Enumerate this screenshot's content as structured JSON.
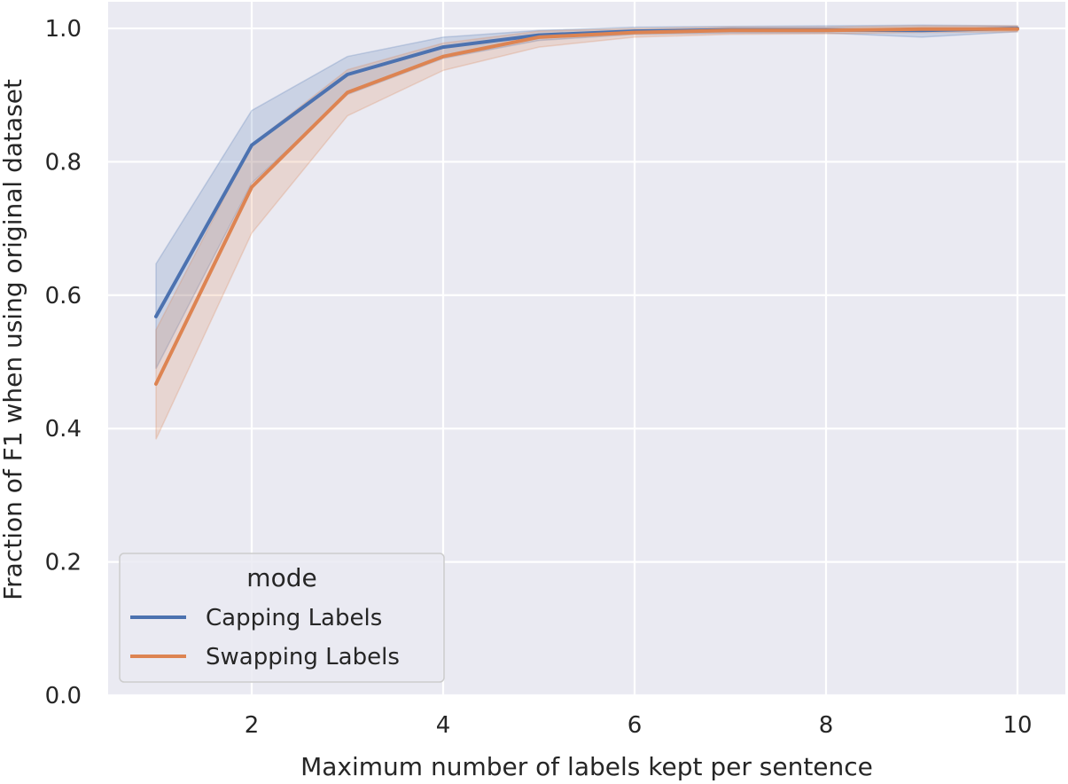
{
  "chart_data": {
    "type": "line",
    "title": "",
    "xlabel": "Maximum number of labels kept per sentence",
    "ylabel": "Fraction of F1 when using original dataset",
    "xlim": [
      0.5,
      10.5
    ],
    "ylim": [
      0.0,
      1.04
    ],
    "xticks": [
      2,
      4,
      6,
      8,
      10
    ],
    "yticks": [
      0.0,
      0.2,
      0.4,
      0.6,
      0.8,
      1.0
    ],
    "xtick_labels": [
      "2",
      "4",
      "6",
      "8",
      "10"
    ],
    "ytick_labels": [
      "0.0",
      "0.2",
      "0.4",
      "0.6",
      "0.8",
      "1.0"
    ],
    "grid": true,
    "background": "#eaeaf2",
    "legend": {
      "title": "mode",
      "placement": "lower-left"
    },
    "x": [
      1,
      2,
      3,
      4,
      5,
      6,
      7,
      8,
      9,
      10
    ],
    "series": [
      {
        "name": "Capping Labels",
        "color": "#4c72b0",
        "values": [
          0.568,
          0.825,
          0.931,
          0.972,
          0.99,
          0.996,
          0.998,
          0.998,
          0.997,
          1.0
        ],
        "ci_lower": [
          0.49,
          0.768,
          0.901,
          0.955,
          0.982,
          0.991,
          0.993,
          0.993,
          0.987,
          0.995
        ],
        "ci_upper": [
          0.647,
          0.877,
          0.958,
          0.987,
          0.997,
          1.002,
          1.003,
          1.004,
          1.005,
          1.004
        ]
      },
      {
        "name": "Swapping Labels",
        "color": "#dd8452",
        "values": [
          0.467,
          0.762,
          0.904,
          0.958,
          0.987,
          0.994,
          0.997,
          0.997,
          0.999,
          0.999
        ],
        "ci_lower": [
          0.384,
          0.693,
          0.869,
          0.937,
          0.972,
          0.987,
          0.991,
          0.992,
          0.994,
          0.995
        ],
        "ci_upper": [
          0.548,
          0.826,
          0.938,
          0.978,
          0.996,
          1.0,
          1.002,
          1.002,
          1.004,
          1.004
        ]
      }
    ]
  }
}
